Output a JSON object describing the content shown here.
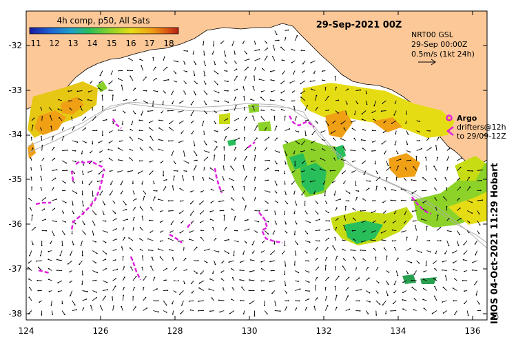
{
  "date_title": "29-Sep-2021 00Z",
  "colorbar": {
    "title": "4h comp, p50, All Sats",
    "ticks": [
      "11",
      "12",
      "13",
      "14",
      "15",
      "16",
      "17",
      "18"
    ],
    "stops": [
      "#1a1aa0",
      "#1e64d2",
      "#1ea0c8",
      "#28be5a",
      "#8cd228",
      "#e6dc14",
      "#f0a014",
      "#dc5a14",
      "#b41e14"
    ]
  },
  "info": {
    "line1": "NRT00 GSL",
    "line2": "29-Sep 00:00Z",
    "line3": "0.5m/s (1kt 24h)"
  },
  "legend": {
    "argo_label": "Argo",
    "drifters_label": "drifters@12h",
    "drifters_to": "to 29/09-12Z",
    "argo_color": "#e020e0"
  },
  "credit": "IMOS 04-Oct-2021 11:29 Hobart",
  "copyright": "©",
  "colors": {
    "land": "#fcc898",
    "track": "#b0b0b0",
    "drifter": "#e020e0"
  },
  "axes": {
    "lon_ticks": [
      "124",
      "126",
      "128",
      "130",
      "132",
      "134",
      "136"
    ],
    "lat_ticks": [
      "-32",
      "-33",
      "-34",
      "-35",
      "-36",
      "-37",
      "-38"
    ]
  }
}
